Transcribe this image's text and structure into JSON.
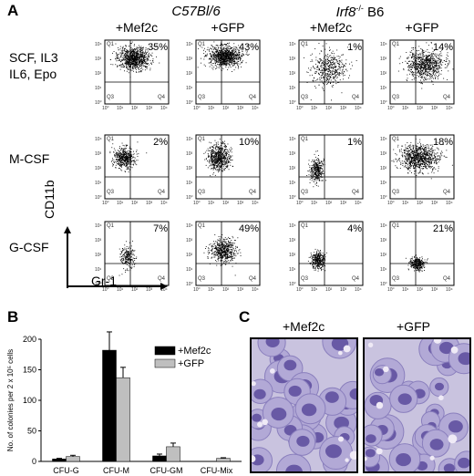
{
  "panels": {
    "A": {
      "letter": "A",
      "header_left": "C57Bl/6",
      "header_right_prefix": "Irf8",
      "header_right_sup": "-/-",
      "header_right_suffix": " B6",
      "columns": [
        "+Mef2c",
        "+GFP",
        "+Mef2c",
        "+GFP"
      ],
      "rows": [
        {
          "label_lines": [
            "SCF, IL3",
            "IL6, Epo"
          ],
          "percents": [
            "35%",
            "43%",
            "1%",
            "14%"
          ]
        },
        {
          "label_lines": [
            "M-CSF"
          ],
          "percents": [
            "2%",
            "10%",
            "1%",
            "18%"
          ]
        },
        {
          "label_lines": [
            "G-CSF"
          ],
          "percents": [
            "7%",
            "49%",
            "4%",
            "21%"
          ]
        }
      ],
      "quadrants": [
        "Q1",
        "Q3",
        "Q4"
      ],
      "y_axis_label": "CD11b",
      "x_axis_label": "Gr-1",
      "tick_labels": [
        "10⁰",
        "10¹",
        "10²",
        "10³",
        "10⁴"
      ]
    },
    "B": {
      "letter": "B"
    },
    "C": {
      "letter": "C",
      "labels": [
        "+Mef2c",
        "+GFP"
      ]
    }
  },
  "chart_data": {
    "type": "bar",
    "categories": [
      "CFU-G",
      "CFU-M",
      "CFU-GM",
      "CFU-Mix"
    ],
    "series": [
      {
        "name": "+Mef2c",
        "color": "#000000",
        "values": [
          4,
          182,
          9,
          0
        ],
        "errors": [
          1,
          30,
          3,
          0
        ]
      },
      {
        "name": "+GFP",
        "color": "#bfbfbf",
        "values": [
          8,
          137,
          24,
          5
        ],
        "errors": [
          2,
          17,
          6,
          1
        ]
      }
    ],
    "ylabel": "No. of colonies per 2 x 10⁵ cells",
    "xlabel": "",
    "ylim": [
      0,
      200
    ],
    "yticks": [
      0,
      50,
      100,
      150,
      200
    ],
    "legend": "top-right"
  }
}
